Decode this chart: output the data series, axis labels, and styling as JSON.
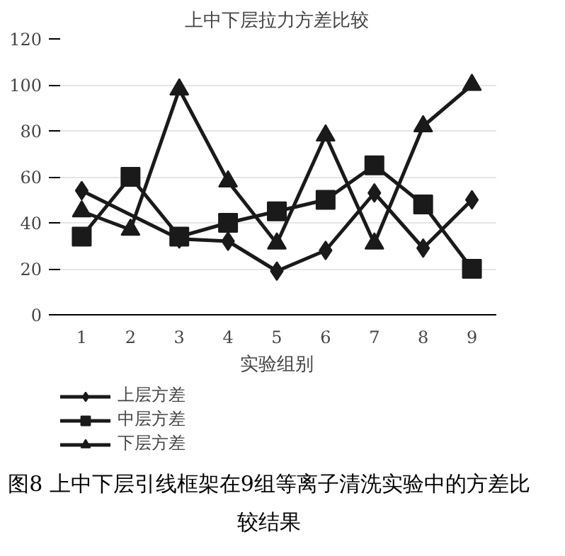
{
  "chart_data": {
    "type": "line",
    "title": "上中下层拉力方差比较",
    "xlabel": "实验组别",
    "categories": [
      "1",
      "2",
      "3",
      "4",
      "5",
      "6",
      "7",
      "8",
      "9"
    ],
    "series": [
      {
        "name": "上层方差",
        "color": "#1a1a1a",
        "marker": "diamond",
        "values": [
          54,
          null,
          33,
          32,
          19,
          28,
          53,
          29,
          50
        ]
      },
      {
        "name": "中层方差",
        "color": "#1a1a1a",
        "marker": "square",
        "values": [
          34,
          60,
          34,
          40,
          45,
          50,
          65,
          48,
          20
        ]
      },
      {
        "name": "下层方差",
        "color": "#1a1a1a",
        "marker": "triangle",
        "values": [
          45,
          37,
          98,
          58,
          31,
          78,
          31,
          82,
          100
        ]
      }
    ],
    "ylim": [
      0,
      120
    ],
    "yticks": [
      0,
      20,
      40,
      60,
      80,
      100,
      120
    ],
    "grid": "y",
    "legend": "bottom left",
    "line_style": "solid",
    "annotations": [
      "图8 上中下层引线框架在9组等离子清洗实验中的方差比较结果"
    ]
  }
}
